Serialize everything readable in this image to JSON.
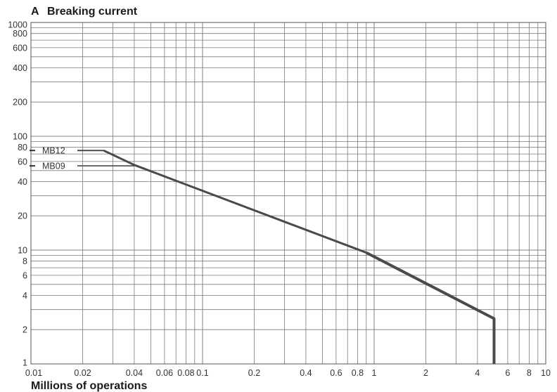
{
  "chart_data": {
    "type": "line",
    "title_prefix": "A",
    "title": "Breaking current",
    "xlabel": "Millions of operations",
    "ylabel": "",
    "x_scale": "log",
    "y_scale": "log",
    "xlim": [
      0.01,
      10
    ],
    "ylim": [
      1,
      1000
    ],
    "grid": true,
    "x_ticks": [
      0.01,
      0.02,
      0.04,
      0.06,
      0.08,
      0.1,
      0.2,
      0.4,
      0.6,
      0.8,
      1,
      2,
      4,
      6,
      8,
      10
    ],
    "x_tick_labels": [
      "0.01",
      "0.02",
      "0.04",
      "0.06",
      "0.08",
      "0.1",
      "0.2",
      "0.4",
      "0.6",
      "0.8",
      "1",
      "2",
      "4",
      "6",
      "8",
      "10"
    ],
    "y_ticks": [
      1,
      2,
      4,
      6,
      8,
      10,
      20,
      40,
      60,
      80,
      100,
      200,
      400,
      600,
      800,
      1000
    ],
    "y_tick_labels": [
      "1",
      "2",
      "4",
      "6",
      "8",
      "10",
      "20",
      "40",
      "60",
      "80",
      "100",
      "200",
      "400",
      "600",
      "800",
      "1000"
    ],
    "series": [
      {
        "name": "MB12",
        "level": 75,
        "x": [
          0.0265,
          0.04,
          0.9,
          5,
          5
        ],
        "y": [
          75,
          56,
          9.5,
          2.5,
          1
        ]
      },
      {
        "name": "MB09",
        "level": 55,
        "x": [
          0.04
        ],
        "y": [
          55
        ]
      }
    ],
    "colors": {
      "curve": "#4a4a4a",
      "grid": "#7a7a7a",
      "frame": "#555555"
    }
  }
}
